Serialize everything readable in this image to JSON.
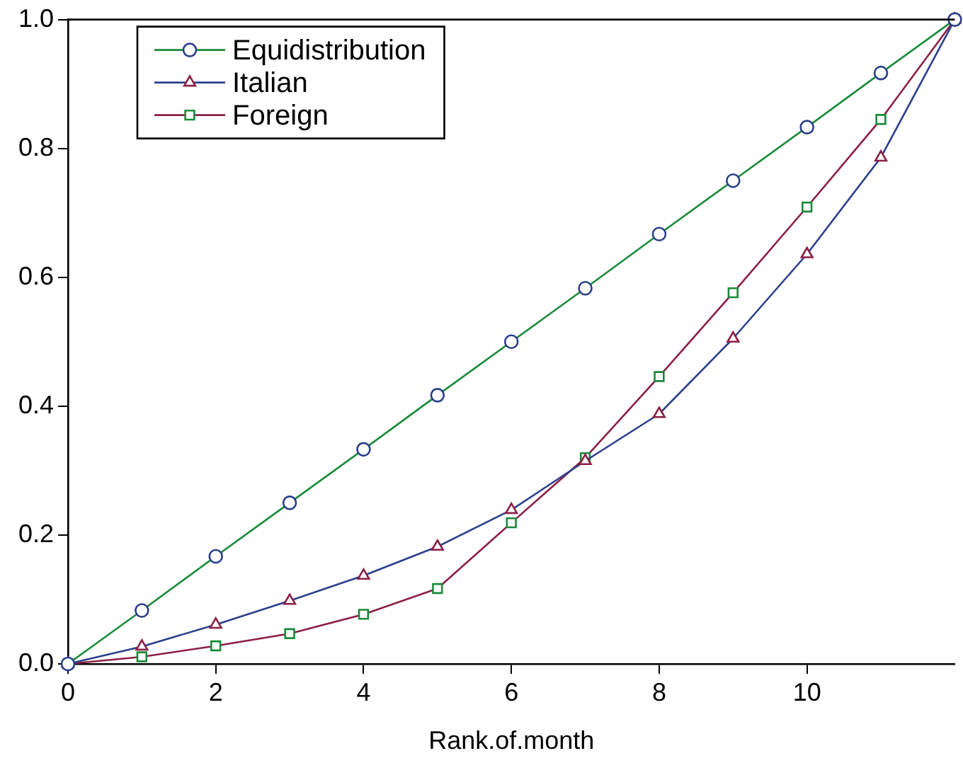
{
  "chart_data": {
    "type": "line",
    "xlabel": "Rank.of.month",
    "x": [
      0,
      1,
      2,
      3,
      4,
      5,
      6,
      7,
      8,
      9,
      10,
      11,
      12
    ],
    "xlim": [
      0,
      12
    ],
    "xticks": [
      0,
      2,
      4,
      6,
      8,
      10
    ],
    "ylim": [
      0,
      1
    ],
    "yticks": [
      {
        "value": 0,
        "label": "0.0"
      },
      {
        "value": 0.2,
        "label": "0.2"
      },
      {
        "value": 0.4,
        "label": "0.4"
      },
      {
        "value": 0.6,
        "label": "0.6"
      },
      {
        "value": 0.8,
        "label": "0.8"
      },
      {
        "value": 1,
        "label": "1.0"
      }
    ],
    "grid": false,
    "legend": "top left",
    "line_style": "solid",
    "series": [
      {
        "name": "Equidistribution",
        "color": "#1a8a3a",
        "marker": "circle",
        "colors": [
          "#2b3f8c",
          "#2b3f8c",
          "#2b3f8c",
          "#2b3f8c",
          "#2b3f8c",
          "#2b3f8c",
          "#2b3f8c",
          "#2b3f8c",
          "#2b3f8c",
          "#2b3f8c",
          "#2b3f8c",
          "#2b3f8c",
          "#2b3f8c"
        ],
        "values": [
          0,
          0.083,
          0.167,
          0.25,
          0.333,
          0.417,
          0.5,
          0.583,
          0.667,
          0.75,
          0.833,
          0.917,
          1
        ]
      },
      {
        "name": "Italian",
        "color": "#2b3f8c",
        "marker": "triangle",
        "colors": [
          "#8c1f45",
          "#8c1f45",
          "#8c1f45",
          "#8c1f45",
          "#8c1f45",
          "#8c1f45",
          "#8c1f45",
          "#8c1f45",
          "#8c1f45",
          "#8c1f45",
          "#8c1f45",
          "#8c1f45",
          "#8c1f45"
        ],
        "values": [
          0,
          0.027,
          0.061,
          0.098,
          0.137,
          0.182,
          0.239,
          0.315,
          0.388,
          0.505,
          0.636,
          0.786,
          1
        ]
      },
      {
        "name": "Foreign",
        "color": "#8c1f45",
        "marker": "square",
        "colors": [
          "#1a8a3a",
          "#1a8a3a",
          "#1a8a3a",
          "#1a8a3a",
          "#1a8a3a",
          "#1a8a3a",
          "#1a8a3a",
          "#1a8a3a",
          "#1a8a3a",
          "#1a8a3a",
          "#1a8a3a",
          "#1a8a3a",
          "#1a8a3a"
        ],
        "values": [
          0,
          0.011,
          0.028,
          0.047,
          0.077,
          0.117,
          0.219,
          0.32,
          0.446,
          0.576,
          0.709,
          0.845,
          1
        ]
      }
    ]
  }
}
